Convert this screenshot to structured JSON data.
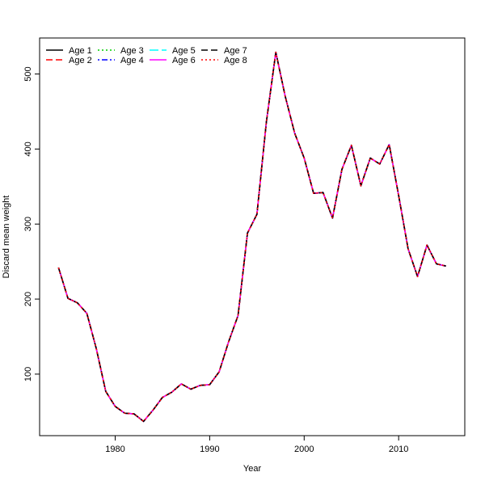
{
  "chart_data": {
    "type": "line",
    "title": "",
    "xlabel": "Year",
    "ylabel": "Discard mean weight",
    "xlim": [
      1972,
      2017
    ],
    "ylim": [
      18,
      548
    ],
    "x_ticks": [
      1980,
      1990,
      2000,
      2010
    ],
    "y_ticks": [
      100,
      200,
      300,
      400,
      500
    ],
    "grid": false,
    "legend_position": "top-left",
    "x": [
      1974,
      1975,
      1976,
      1977,
      1978,
      1979,
      1980,
      1981,
      1982,
      1983,
      1984,
      1985,
      1986,
      1987,
      1988,
      1989,
      1990,
      1991,
      1992,
      1993,
      1994,
      1995,
      1996,
      1997,
      1998,
      1999,
      2000,
      2001,
      2002,
      2003,
      2004,
      2005,
      2006,
      2007,
      2008,
      2009,
      2010,
      2011,
      2012,
      2013,
      2014,
      2015
    ],
    "series": [
      {
        "name": "Age 1",
        "color": "#000000",
        "dash": "solid",
        "values": [
          242,
          201,
          195,
          181,
          134,
          77,
          57,
          48,
          47,
          37,
          52,
          69,
          76,
          87,
          80,
          85,
          86,
          103,
          143,
          178,
          288,
          313,
          436,
          529,
          470,
          421,
          388,
          341,
          342,
          308,
          373,
          405,
          351,
          388,
          380,
          406,
          338,
          267,
          230,
          272,
          247,
          244
        ]
      },
      {
        "name": "Age 2",
        "color": "#ff0000",
        "dash": "dashed",
        "values": [
          242,
          201,
          195,
          181,
          134,
          77,
          57,
          48,
          47,
          37,
          52,
          69,
          76,
          87,
          80,
          85,
          86,
          103,
          143,
          178,
          288,
          313,
          436,
          529,
          470,
          421,
          388,
          341,
          342,
          308,
          373,
          405,
          351,
          388,
          380,
          406,
          338,
          267,
          230,
          272,
          247,
          244
        ]
      },
      {
        "name": "Age 3",
        "color": "#00cd00",
        "dash": "dotted",
        "values": [
          242,
          201,
          195,
          181,
          134,
          77,
          57,
          48,
          47,
          37,
          52,
          69,
          76,
          87,
          80,
          85,
          86,
          103,
          143,
          178,
          288,
          313,
          436,
          529,
          470,
          421,
          388,
          341,
          342,
          308,
          373,
          405,
          351,
          388,
          380,
          406,
          338,
          267,
          230,
          272,
          247,
          244
        ]
      },
      {
        "name": "Age 4",
        "color": "#0000ff",
        "dash": "dotdash",
        "values": [
          242,
          201,
          195,
          181,
          134,
          77,
          57,
          48,
          47,
          37,
          52,
          69,
          76,
          87,
          80,
          85,
          86,
          103,
          143,
          178,
          288,
          313,
          436,
          529,
          470,
          421,
          388,
          341,
          342,
          308,
          373,
          405,
          351,
          388,
          380,
          406,
          338,
          267,
          230,
          272,
          247,
          244
        ]
      },
      {
        "name": "Age 5",
        "color": "#00ffff",
        "dash": "longdash",
        "values": [
          242,
          201,
          195,
          181,
          134,
          77,
          57,
          48,
          47,
          37,
          52,
          69,
          76,
          87,
          80,
          85,
          86,
          103,
          143,
          178,
          288,
          313,
          436,
          529,
          470,
          421,
          388,
          341,
          342,
          308,
          373,
          405,
          351,
          388,
          380,
          406,
          338,
          267,
          230,
          272,
          247,
          244
        ]
      },
      {
        "name": "Age 6",
        "color": "#ff00ff",
        "dash": "solid",
        "values": [
          242,
          201,
          195,
          181,
          134,
          77,
          57,
          48,
          47,
          37,
          52,
          69,
          76,
          87,
          80,
          85,
          86,
          103,
          143,
          178,
          288,
          313,
          436,
          529,
          470,
          421,
          388,
          341,
          342,
          308,
          373,
          405,
          351,
          388,
          380,
          406,
          338,
          267,
          230,
          272,
          247,
          244
        ]
      },
      {
        "name": "Age 7",
        "color": "#000000",
        "dash": "dashed",
        "values": [
          242,
          201,
          195,
          181,
          134,
          77,
          57,
          48,
          47,
          37,
          52,
          69,
          76,
          87,
          80,
          85,
          86,
          103,
          143,
          178,
          288,
          313,
          436,
          529,
          470,
          421,
          388,
          341,
          342,
          308,
          373,
          405,
          351,
          388,
          380,
          406,
          338,
          267,
          230,
          272,
          247,
          244
        ]
      },
      {
        "name": "Age 8",
        "color": "#ff0000",
        "dash": "dotted",
        "values": [
          242,
          201,
          195,
          181,
          134,
          77,
          57,
          48,
          47,
          37,
          52,
          69,
          76,
          87,
          80,
          85,
          86,
          103,
          143,
          178,
          288,
          313,
          436,
          529,
          470,
          421,
          388,
          341,
          342,
          308,
          373,
          405,
          351,
          388,
          380,
          406,
          338,
          267,
          230,
          272,
          247,
          244
        ]
      }
    ]
  }
}
